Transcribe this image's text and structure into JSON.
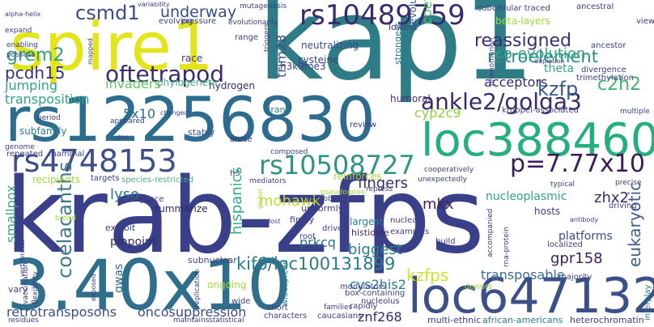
{
  "words": [
    {
      "text": "krab-zfps",
      "color": "#3a3f8a"
    },
    {
      "text": "kap1",
      "color": "#2e7d86"
    },
    {
      "text": "spire1",
      "color": "#e3e41a"
    },
    {
      "text": "rs12256830",
      "color": "#2c6c8e"
    },
    {
      "text": "3.40x10",
      "color": "#2f6f8d"
    },
    {
      "text": "loc647132",
      "color": "#3b4f89"
    },
    {
      "text": "loc388460",
      "color": "#27ae80"
    },
    {
      "text": "rs10489759",
      "color": "#3a2b6e"
    },
    {
      "text": "rs4748153",
      "color": "#3d4e89"
    },
    {
      "text": "rs10508727",
      "color": "#2e9488"
    },
    {
      "text": "p=7.77x10",
      "color": "#3b1b5a"
    },
    {
      "text": "ankle2/golga3",
      "color": "#3a2a6c"
    },
    {
      "text": "oftetrapod",
      "color": "#3b2a6d"
    },
    {
      "text": "coelacanths",
      "color": "#3f7a8b"
    },
    {
      "text": "kif6/loc100131899",
      "color": "#2c7b8a"
    },
    {
      "text": "reassigned",
      "color": "#3a2d70"
    },
    {
      "text": "retroelement",
      "color": "#2c8a8a"
    },
    {
      "text": "co-evolution",
      "color": "#35a483"
    },
    {
      "text": "kzfp",
      "color": "#365b8c"
    },
    {
      "text": "c2h2",
      "color": "#42b56f"
    },
    {
      "text": "csmd1",
      "color": "#3b4c8a"
    },
    {
      "text": "grem2",
      "color": "#30a07f"
    },
    {
      "text": "pcdh15",
      "color": "#37346f"
    },
    {
      "text": "jumping",
      "color": "#34a08c"
    },
    {
      "text": "transposition",
      "color": "#32a08b"
    },
    {
      "text": "5x10",
      "color": "#2d6f8e"
    },
    {
      "text": "underway",
      "color": "#3a4d89"
    },
    {
      "text": "trim28",
      "color": "#3f4d88"
    },
    {
      "text": "invaders",
      "color": "#5fc45e"
    },
    {
      "text": "cyp2c9",
      "color": "#8dd13c"
    },
    {
      "text": "fingers",
      "color": "#3b2d6d"
    },
    {
      "text": "zhx2",
      "color": "#3b2b6d"
    },
    {
      "text": "hispanics",
      "color": "#2fa988"
    },
    {
      "text": "mohawk",
      "color": "#c5dc2a"
    },
    {
      "text": "mkx",
      "color": "#3e1f5f"
    },
    {
      "text": "lyso",
      "color": "#2a7589"
    },
    {
      "text": "smallpox",
      "color": "#3a9f8b"
    },
    {
      "text": "prkcq",
      "color": "#2d6e8d"
    },
    {
      "text": "biggest",
      "color": "#2c7d8b"
    },
    {
      "text": "kzfps",
      "color": "#cfe12a"
    },
    {
      "text": "gpr158",
      "color": "#3b1f5d"
    },
    {
      "text": "eukaryotic",
      "color": "#3d5e8c"
    },
    {
      "text": "transposable",
      "color": "#3a6c8d"
    },
    {
      "text": "cys2his2",
      "color": "#2d7a8b"
    },
    {
      "text": "oncosuppression",
      "color": "#3b4d8a"
    },
    {
      "text": "retrotransposons",
      "color": "#3b4e8b"
    },
    {
      "text": "znf268",
      "color": "#3b2d6e"
    },
    {
      "text": "gwas",
      "color": "#2f6b8c"
    },
    {
      "text": "pinpoint",
      "color": "#2f2b68"
    },
    {
      "text": "platforms",
      "color": "#3c4b88"
    },
    {
      "text": "nucleoplasmic",
      "color": "#34a08a"
    },
    {
      "text": "coevolution",
      "color": "#4bbd6a"
    },
    {
      "text": "acceptors",
      "color": "#3a2b6c"
    },
    {
      "text": "theta",
      "color": "#35a085"
    },
    {
      "text": "humoral",
      "color": "#4a2f75"
    },
    {
      "text": "evolutionary",
      "color": "#2f5d8a"
    },
    {
      "text": "cysteine",
      "color": "#3a3f7d"
    },
    {
      "text": "neutralizing",
      "color": "#3b4c89"
    },
    {
      "text": "h3k9me3",
      "color": "#3b3f84"
    },
    {
      "text": "hydrogen",
      "color": "#3b2a6c"
    },
    {
      "text": "phylogenetic",
      "color": "#4ab07f"
    },
    {
      "text": "race",
      "color": "#3b3f86"
    },
    {
      "text": "subfamily",
      "color": "#2b7b8a"
    },
    {
      "text": "beta-layers",
      "color": "#9ed93a"
    },
    {
      "text": "subcellular traced",
      "color": "#3b3f84"
    },
    {
      "text": "lowest",
      "color": "#3b3f84"
    },
    {
      "text": "strongest",
      "color": "#2b7c8b"
    },
    {
      "text": "stably",
      "color": "#3a4d89"
    },
    {
      "text": "trans",
      "color": "#2b7c8b"
    },
    {
      "text": "review",
      "color": "#3b3f84"
    },
    {
      "text": "arose",
      "color": "#3a2b6c"
    },
    {
      "text": "species-restricted",
      "color": "#4ab07f"
    },
    {
      "text": "recipients",
      "color": "#a4d83a"
    },
    {
      "text": "repeated",
      "color": "#3b3f84"
    },
    {
      "text": "mammal",
      "color": "#3b3f84"
    },
    {
      "text": "h3",
      "color": "#3b3f84"
    },
    {
      "text": "targets",
      "color": "#3b3f84"
    },
    {
      "text": "summarize",
      "color": "#2e2a66"
    },
    {
      "text": "emergence",
      "color": "#3b3f84"
    },
    {
      "text": "arms",
      "color": "#3b3f84"
    },
    {
      "text": "exploit",
      "color": "#3b3f84"
    },
    {
      "text": "uniformly",
      "color": "#3b3f84"
    },
    {
      "text": "finely",
      "color": "#3b3f84"
    },
    {
      "text": "largest",
      "color": "#2b7c8b"
    },
    {
      "text": "histidine",
      "color": "#3b2a6c"
    },
    {
      "text": "nuclear",
      "color": "#3b3f84"
    },
    {
      "text": "examples",
      "color": "#3b3f84"
    },
    {
      "text": "driver",
      "color": "#3b3f84"
    },
    {
      "text": "root",
      "color": "#3b3f84"
    },
    {
      "text": "build",
      "color": "#3b3f84"
    },
    {
      "text": "hosts",
      "color": "#3b3f84"
    },
    {
      "text": "driving",
      "color": "#3b3f84"
    },
    {
      "text": "localized",
      "color": "#3b3f84"
    },
    {
      "text": "subnuclear",
      "color": "#3b3f84"
    },
    {
      "text": "ongoing",
      "color": "#a4d83a"
    },
    {
      "text": "modulators",
      "color": "#3b3f84"
    },
    {
      "text": "donors",
      "color": "#a4d83a"
    },
    {
      "text": "majority",
      "color": "#3b3f84"
    },
    {
      "text": "vary",
      "color": "#3b3f84"
    },
    {
      "text": "wide",
      "color": "#3b3f84"
    },
    {
      "text": "short",
      "color": "#3b3f84"
    },
    {
      "text": "characters",
      "color": "#3b3f84"
    },
    {
      "text": "caucasians",
      "color": "#3b3f84"
    },
    {
      "text": "rapidly",
      "color": "#3b3f84"
    },
    {
      "text": "families",
      "color": "#3b3f84"
    },
    {
      "text": "multi-ethnic",
      "color": "#3b3f84"
    },
    {
      "text": "african-americans",
      "color": "#2b7c8b"
    },
    {
      "text": "heterochromatin",
      "color": "#3b3f84"
    },
    {
      "text": "nucleolus",
      "color": "#3b3f84"
    },
    {
      "text": "residues",
      "color": "#3b3f84"
    },
    {
      "text": "maintains",
      "color": "#3b3f84"
    },
    {
      "text": "statistical",
      "color": "#3b3f84"
    },
    {
      "text": "interplay",
      "color": "#2b7c8b"
    },
    {
      "text": "widespread",
      "color": "#2b7c8b"
    },
    {
      "text": "replication",
      "color": "#3b3f84"
    },
    {
      "text": "box-containing",
      "color": "#3b3f84"
    },
    {
      "text": "accompanied",
      "color": "#3b3f84"
    },
    {
      "text": "rna-protein",
      "color": "#3b3f84"
    },
    {
      "text": "mutagenesis",
      "color": "#3b3f84"
    },
    {
      "text": "evolving",
      "color": "#3b3f84"
    },
    {
      "text": "pressure",
      "color": "#3b3f84"
    },
    {
      "text": "variability",
      "color": "#3b3f84"
    },
    {
      "text": "evolutionarily",
      "color": "#3b3f84"
    },
    {
      "text": "ancestral",
      "color": "#3b3f84"
    },
    {
      "text": "ancestor",
      "color": "#3b3f84"
    },
    {
      "text": "view",
      "color": "#3b3f84"
    },
    {
      "text": "range",
      "color": "#3b3f84"
    },
    {
      "text": "triggers",
      "color": "#3b3f84"
    },
    {
      "text": "divergence",
      "color": "#3b3f84"
    },
    {
      "text": "trimethylation",
      "color": "#3b3f84"
    },
    {
      "text": "depletion",
      "color": "#3b3f84"
    },
    {
      "text": "phenomenon",
      "color": "#3b3f84"
    },
    {
      "text": "expand",
      "color": "#3b3f84"
    },
    {
      "text": "alpha-helix",
      "color": "#3b3f84"
    },
    {
      "text": "possess",
      "color": "#3b3f84"
    },
    {
      "text": "enabling",
      "color": "#3b3f84"
    },
    {
      "text": "mapped",
      "color": "#3b3f84"
    },
    {
      "text": "kruppel-associated",
      "color": "#3b3f84"
    },
    {
      "text": "multiple",
      "color": "#3b3f84"
    },
    {
      "text": "period",
      "color": "#3b3f84"
    },
    {
      "text": "appeared",
      "color": "#3b3f84"
    },
    {
      "text": "genome",
      "color": "#3b3f84"
    },
    {
      "text": "changed",
      "color": "#3b3f84"
    },
    {
      "text": "dna",
      "color": "#3b3f84"
    },
    {
      "text": "composed",
      "color": "#3b3f84"
    },
    {
      "text": "mediators",
      "color": "#3b3f84"
    },
    {
      "text": "repress",
      "color": "#3b3f84"
    },
    {
      "text": "homeobox",
      "color": "#3b3f84"
    },
    {
      "text": "pseudogene",
      "color": "#a4d83a"
    },
    {
      "text": "unexpectedly",
      "color": "#3b3f84"
    },
    {
      "text": "cooperatively",
      "color": "#3b3f84"
    },
    {
      "text": "typical",
      "color": "#3b3f84"
    },
    {
      "text": "precise",
      "color": "#3b3f84"
    },
    {
      "text": "antibody",
      "color": "#3b3f84"
    },
    {
      "text": "broad",
      "color": "#a4d83a"
    },
    {
      "text": "global",
      "color": "#a4d83a"
    },
    {
      "text": "lost",
      "color": "#3b3f84"
    },
    {
      "text": "epigenetic",
      "color": "#3b3f84"
    },
    {
      "text": "exposed",
      "color": "#3b3f84"
    },
    {
      "text": "vertebrates",
      "color": "#3b3f84"
    },
    {
      "text": "flexibility",
      "color": "#3b3f84"
    },
    {
      "text": "vaccination",
      "color": "#3b3f84"
    },
    {
      "text": "reinforces",
      "color": "#a4d83a"
    }
  ]
}
